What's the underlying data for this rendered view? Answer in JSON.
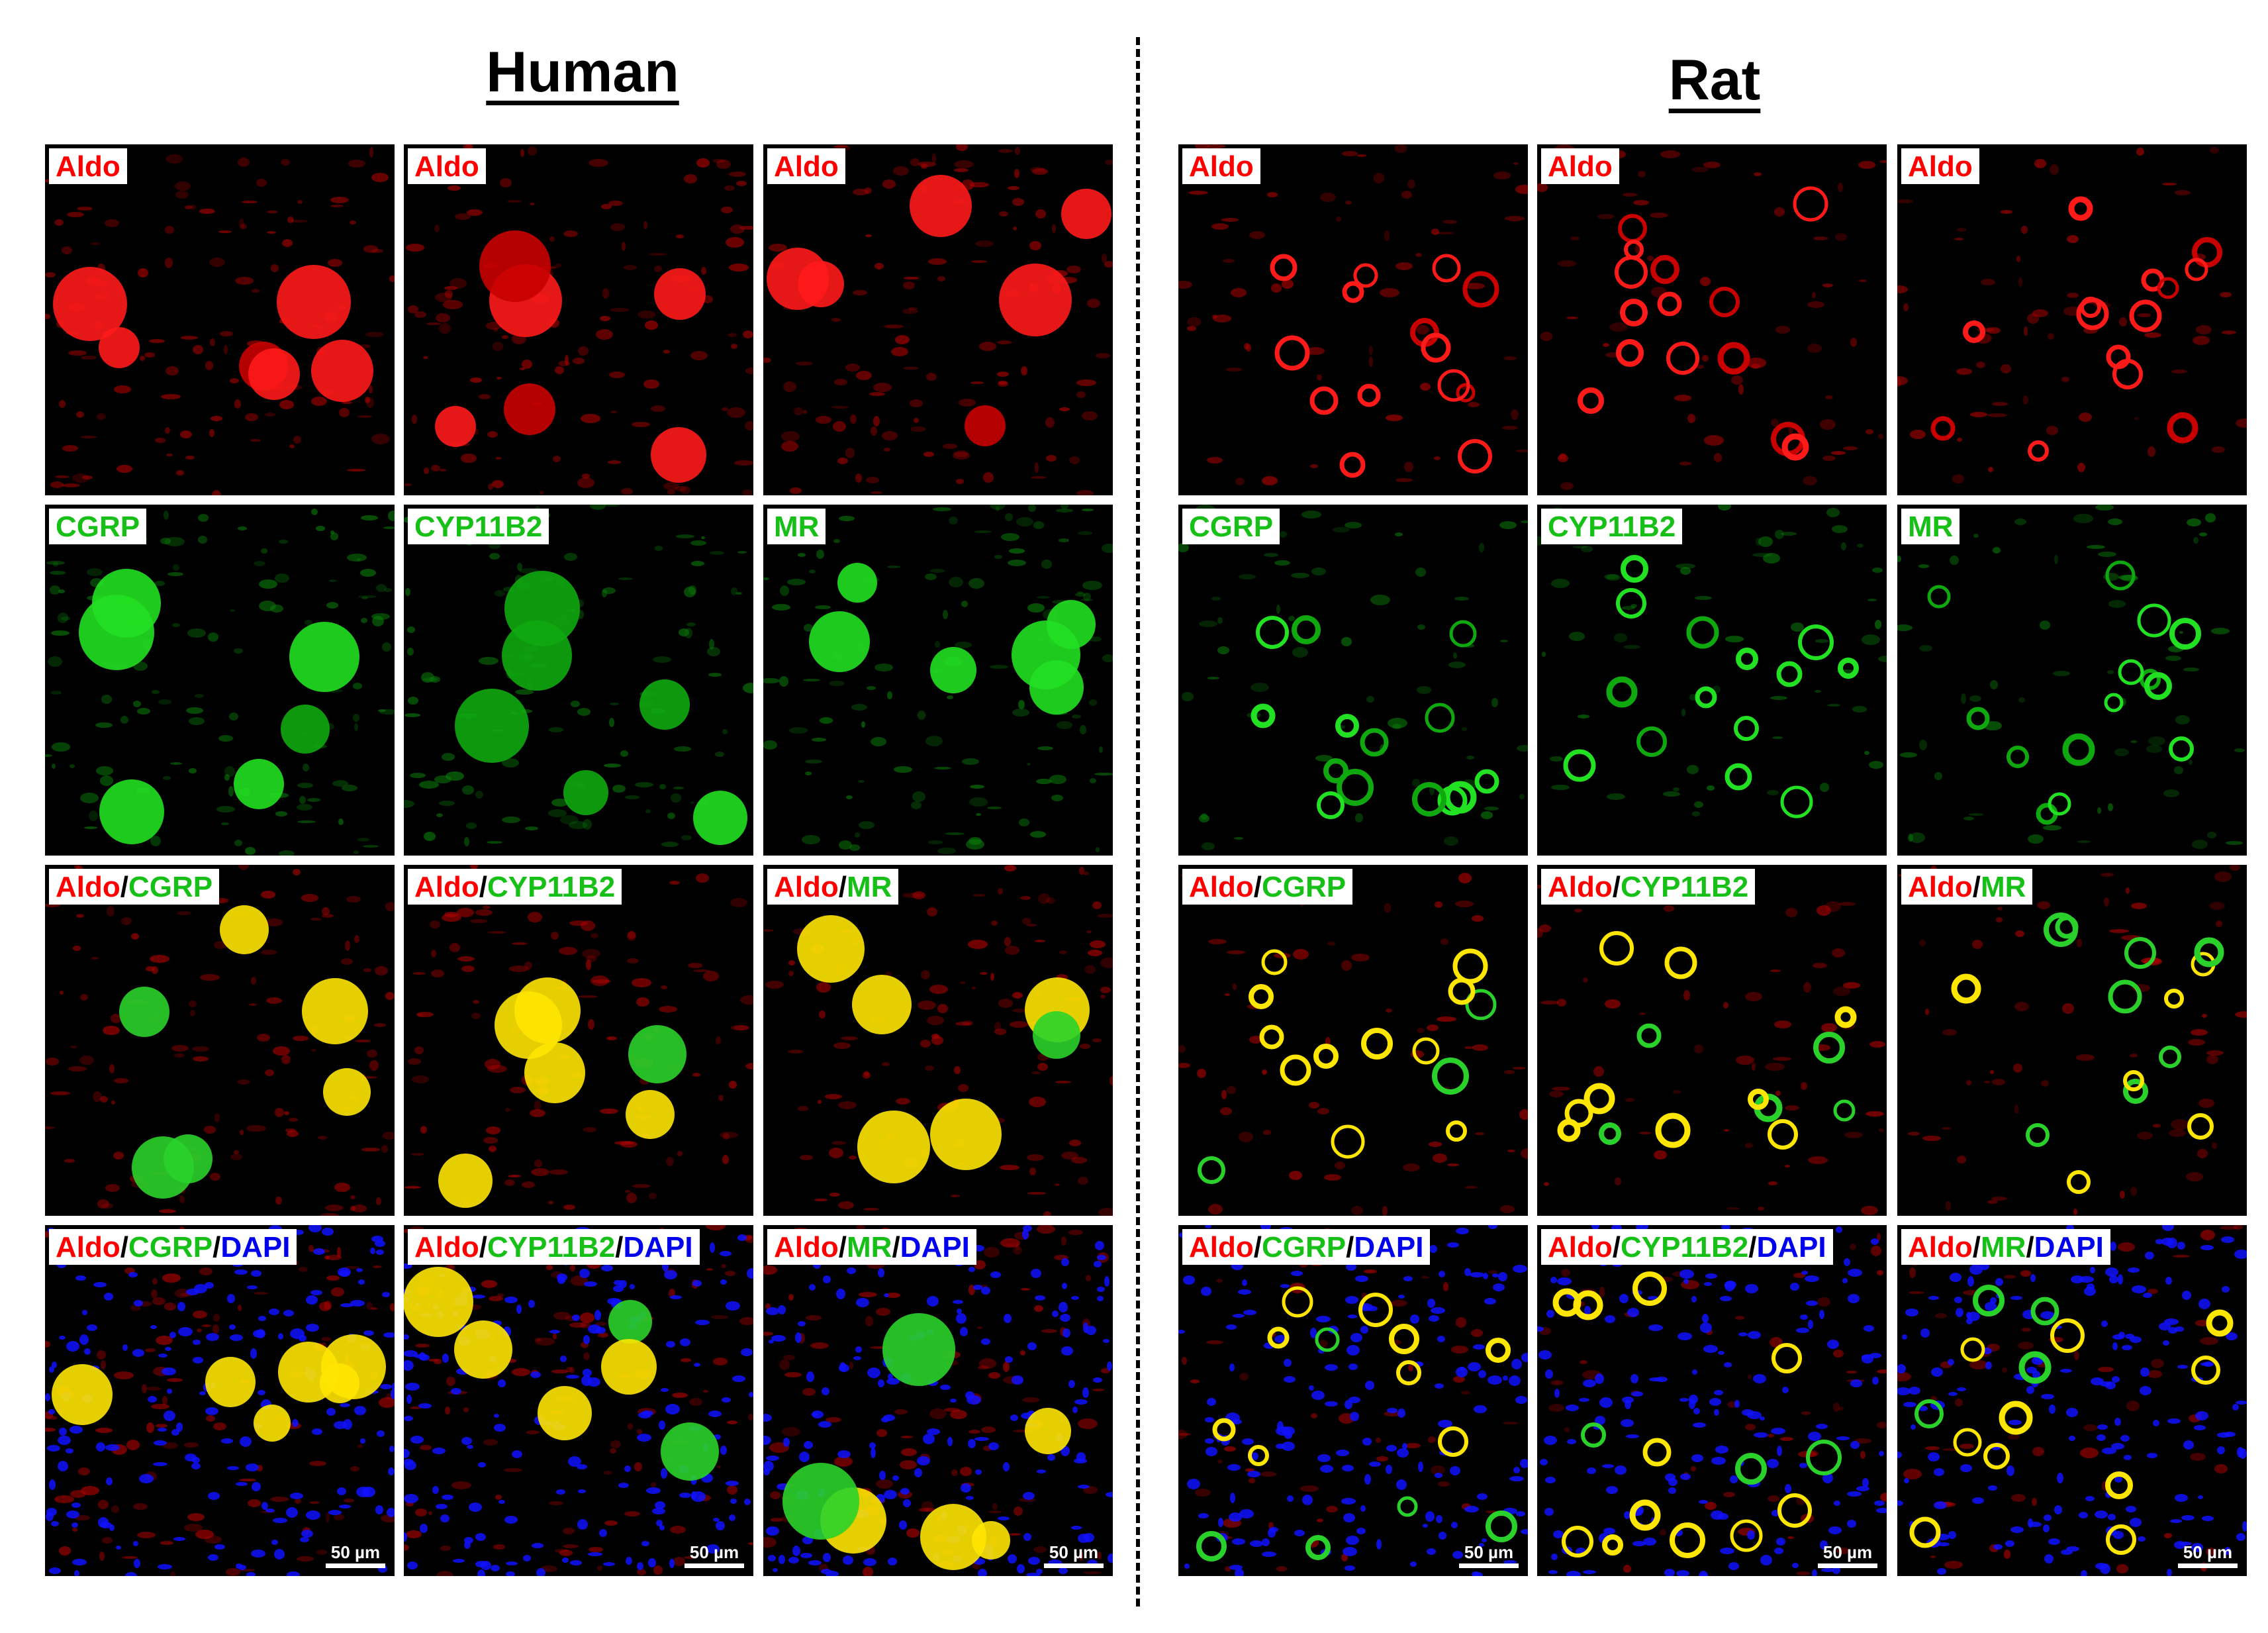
{
  "headings": {
    "human": "Human",
    "rat": "Rat"
  },
  "colors": {
    "aldo": "#ff0000",
    "marker": "#16c016",
    "dapi": "#0000ee",
    "merge": "#ffee00"
  },
  "scale_bar": "50 µm",
  "rows": [
    {
      "stain": "red",
      "human": [
        {
          "parts": [
            "Aldo"
          ]
        },
        {
          "parts": [
            "Aldo"
          ]
        },
        {
          "parts": [
            "Aldo"
          ]
        }
      ],
      "rat": [
        {
          "parts": [
            "Aldo"
          ]
        },
        {
          "parts": [
            "Aldo"
          ]
        },
        {
          "parts": [
            "Aldo"
          ]
        }
      ]
    },
    {
      "stain": "green",
      "human": [
        {
          "parts": [
            "CGRP"
          ]
        },
        {
          "parts": [
            "CYP11B2"
          ]
        },
        {
          "parts": [
            "MR"
          ]
        }
      ],
      "rat": [
        {
          "parts": [
            "CGRP"
          ]
        },
        {
          "parts": [
            "CYP11B2"
          ]
        },
        {
          "parts": [
            "MR"
          ]
        }
      ]
    },
    {
      "stain": "merge",
      "human": [
        {
          "parts": [
            "Aldo",
            "/",
            "CGRP"
          ]
        },
        {
          "parts": [
            "Aldo",
            "/",
            "CYP11B2"
          ]
        },
        {
          "parts": [
            "Aldo",
            "/",
            "MR"
          ]
        }
      ],
      "rat": [
        {
          "parts": [
            "Aldo",
            "/",
            "CGRP"
          ]
        },
        {
          "parts": [
            "Aldo",
            "/",
            "CYP11B2"
          ]
        },
        {
          "parts": [
            "Aldo",
            "/",
            "MR"
          ]
        }
      ]
    },
    {
      "stain": "dapi",
      "human": [
        {
          "parts": [
            "Aldo",
            "/",
            "CGRP",
            "/",
            "DAPI"
          ]
        },
        {
          "parts": [
            "Aldo",
            "/",
            "CYP11B2",
            "/",
            "DAPI"
          ]
        },
        {
          "parts": [
            "Aldo",
            "/",
            "MR",
            "/",
            "DAPI"
          ]
        }
      ],
      "rat": [
        {
          "parts": [
            "Aldo",
            "/",
            "CGRP",
            "/",
            "DAPI"
          ]
        },
        {
          "parts": [
            "Aldo",
            "/",
            "CYP11B2",
            "/",
            "DAPI"
          ]
        },
        {
          "parts": [
            "Aldo",
            "/",
            "MR",
            "/",
            "DAPI"
          ]
        }
      ]
    }
  ]
}
